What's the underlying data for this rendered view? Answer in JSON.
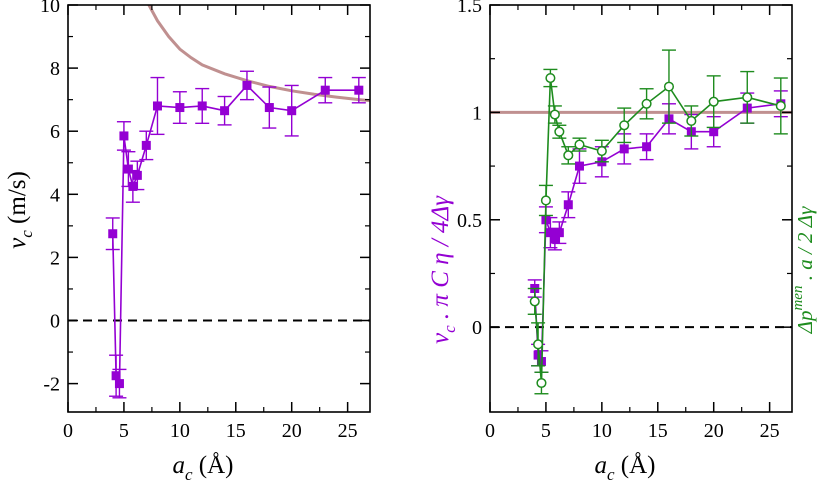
{
  "colors": {
    "purple": "#9400d3",
    "green": "#1e8c1e",
    "theory": "#c09090",
    "axis": "#000000"
  },
  "chart_data": [
    {
      "type": "scatter",
      "name": "left",
      "xlim": [
        0,
        27
      ],
      "ylim": [
        -2.9,
        10
      ],
      "xticks": [
        0,
        5,
        10,
        15,
        20,
        25
      ],
      "xtick_labels": [
        "0",
        "5",
        "10",
        "15",
        "20",
        "25"
      ],
      "yticks": [
        -2,
        0,
        2,
        4,
        6,
        8,
        10
      ],
      "ytick_labels": [
        "-2",
        "0",
        "2",
        "4",
        "6",
        "8",
        "10"
      ],
      "xlabel": {
        "main": "a",
        "sub": "c",
        "unit": " (Å)"
      },
      "ylabel": {
        "main": "v",
        "sub": "c",
        "unit": " (m/s)"
      },
      "zero_line": 0,
      "theory_curve": {
        "name": "theory",
        "x": [
          7.0,
          8,
          9,
          10,
          11,
          12,
          14,
          16,
          18,
          20,
          22,
          24,
          26,
          27
        ],
        "y": [
          10.15,
          9.5,
          9.0,
          8.6,
          8.33,
          8.1,
          7.82,
          7.6,
          7.42,
          7.28,
          7.17,
          7.08,
          7.0,
          6.97
        ]
      },
      "series": [
        {
          "name": "vc",
          "color_key": "purple",
          "marker": "square",
          "x": [
            4.0,
            4.3,
            4.6,
            5.0,
            5.4,
            5.8,
            6.2,
            7.0,
            8.0,
            10.0,
            12.0,
            14.0,
            16.0,
            18.0,
            20.0,
            23.0,
            26.0
          ],
          "y": [
            2.75,
            -1.75,
            -2.0,
            5.85,
            4.8,
            4.25,
            4.6,
            5.55,
            6.8,
            6.75,
            6.8,
            6.65,
            7.45,
            6.75,
            6.65,
            7.3,
            7.3
          ],
          "err": [
            0.5,
            0.65,
            0.45,
            0.45,
            0.55,
            0.5,
            0.45,
            0.45,
            0.9,
            0.5,
            0.55,
            0.45,
            0.45,
            0.65,
            0.8,
            0.4,
            0.4
          ]
        }
      ]
    },
    {
      "type": "scatter",
      "name": "right",
      "xlim": [
        0,
        27
      ],
      "ylim": [
        -0.395,
        1.5
      ],
      "xticks": [
        0,
        5,
        10,
        15,
        20,
        25
      ],
      "xtick_labels": [
        "0",
        "5",
        "10",
        "15",
        "20",
        "25"
      ],
      "yticks": [
        0,
        0.5,
        1,
        1.5
      ],
      "ytick_labels": [
        "0",
        "0.5",
        "1",
        "1.5"
      ],
      "xlabel": {
        "main": "a",
        "sub": "c",
        "unit": " (Å)"
      },
      "ylabel_left": {
        "v": "v",
        "sub": "c",
        "rest": " . π C η / 4Δγ"
      },
      "ylabel_right": {
        "dp": "Δp",
        "sup": "men",
        "rest": " . a / 2 Δγ"
      },
      "zero_line": 0,
      "reference_line": 1,
      "series": [
        {
          "name": "normalized vc",
          "color_key": "purple",
          "marker": "square",
          "x": [
            4.0,
            4.3,
            4.6,
            5.0,
            5.4,
            5.8,
            6.2,
            7.0,
            8.0,
            10.0,
            12.0,
            14.0,
            16.0,
            18.0,
            20.0,
            23.0,
            26.0
          ],
          "y": [
            0.18,
            -0.13,
            -0.16,
            0.5,
            0.44,
            0.41,
            0.44,
            0.57,
            0.75,
            0.77,
            0.83,
            0.84,
            0.97,
            0.91,
            0.91,
            1.02,
            1.04
          ],
          "err": [
            0.04,
            0.05,
            0.05,
            0.06,
            0.07,
            0.05,
            0.05,
            0.06,
            0.08,
            0.07,
            0.07,
            0.06,
            0.07,
            0.08,
            0.07,
            0.07,
            0.06
          ]
        },
        {
          "name": "meniscus pressure",
          "color_key": "green",
          "marker": "circle",
          "x": [
            4.0,
            4.3,
            4.6,
            5.0,
            5.4,
            5.8,
            6.2,
            7.0,
            8.0,
            10.0,
            12.0,
            14.0,
            16.0,
            18.0,
            20.0,
            23.0,
            26.0
          ],
          "y": [
            0.12,
            -0.08,
            -0.26,
            0.59,
            1.16,
            0.99,
            0.91,
            0.8,
            0.85,
            0.82,
            0.94,
            1.04,
            1.12,
            0.96,
            1.05,
            1.07,
            1.03
          ],
          "err": [
            0.06,
            0.1,
            0.05,
            0.07,
            0.04,
            0.04,
            0.03,
            0.04,
            0.03,
            0.05,
            0.08,
            0.07,
            0.17,
            0.07,
            0.12,
            0.12,
            0.13
          ]
        }
      ]
    }
  ]
}
